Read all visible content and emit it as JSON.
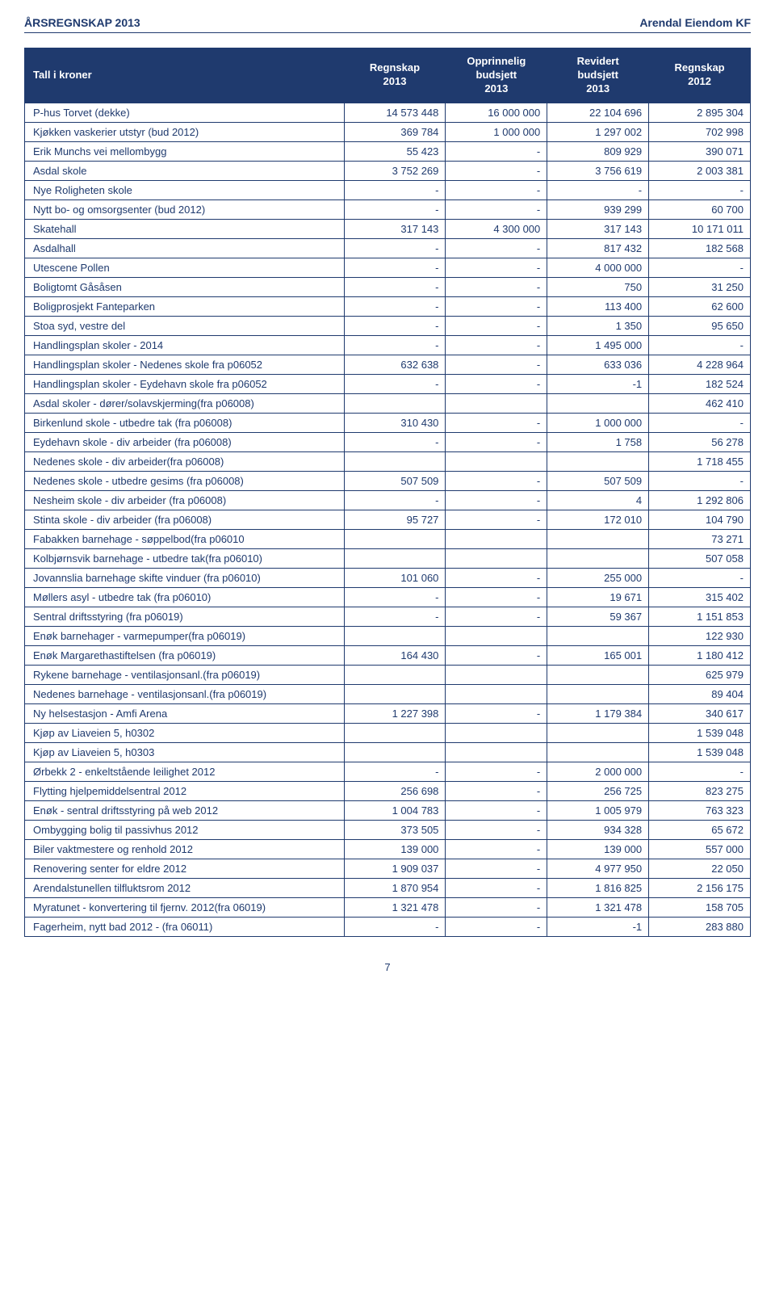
{
  "header": {
    "left": "ÅRSREGNSKAP 2013",
    "right": "Arendal Eiendom KF"
  },
  "page_number": "7",
  "styling": {
    "brand_color": "#1f3a6e",
    "header_bg": "#1f3a6e",
    "header_fg": "#ffffff",
    "body_bg": "#ffffff",
    "font_family": "Arial",
    "font_size_body": 13,
    "font_size_header": 14,
    "col_widths_pct": [
      44,
      14,
      14,
      14,
      14
    ],
    "col_align": [
      "left",
      "right",
      "right",
      "right",
      "right"
    ]
  },
  "table": {
    "type": "table",
    "columns": [
      "Tall i kroner",
      "Regnskap\n2013",
      "Opprinnelig\nbudsjett\n2013",
      "Revidert\nbudsjett\n2013",
      "Regnskap\n2012"
    ],
    "rows": [
      [
        "P-hus Torvet (dekke)",
        "14 573 448",
        "16 000 000",
        "22 104 696",
        "2 895 304"
      ],
      [
        "Kjøkken vaskerier utstyr (bud 2012)",
        "369 784",
        "1 000 000",
        "1 297 002",
        "702 998"
      ],
      [
        "Erik Munchs vei mellombygg",
        "55 423",
        "-",
        "809 929",
        "390 071"
      ],
      [
        "Asdal skole",
        "3 752 269",
        "-",
        "3 756 619",
        "2 003 381"
      ],
      [
        "Nye Roligheten skole",
        "-",
        "-",
        "-",
        "-"
      ],
      [
        "Nytt bo- og omsorgsenter (bud 2012)",
        "-",
        "-",
        "939 299",
        "60 700"
      ],
      [
        "Skatehall",
        "317 143",
        "4 300 000",
        "317 143",
        "10 171 011"
      ],
      [
        "Asdalhall",
        "-",
        "-",
        "817 432",
        "182 568"
      ],
      [
        "Utescene Pollen",
        "-",
        "-",
        "4 000 000",
        "-"
      ],
      [
        "Boligtomt Gåsåsen",
        "-",
        "-",
        "750",
        "31 250"
      ],
      [
        "Boligprosjekt Fanteparken",
        "-",
        "-",
        "113 400",
        "62 600"
      ],
      [
        "Stoa syd, vestre del",
        "-",
        "-",
        "1 350",
        "95 650"
      ],
      [
        "Handlingsplan skoler - 2014",
        "-",
        "-",
        "1 495 000",
        "-"
      ],
      [
        "Handlingsplan skoler - Nedenes skole fra p06052",
        "632 638",
        "-",
        "633 036",
        "4 228 964"
      ],
      [
        "Handlingsplan skoler - Eydehavn skole fra p06052",
        "-",
        "-",
        "-1",
        "182 524"
      ],
      [
        "Asdal skoler - dører/solavskjerming(fra p06008)",
        "",
        "",
        "",
        "462 410"
      ],
      [
        "Birkenlund skole - utbedre tak (fra p06008)",
        "310 430",
        "-",
        "1 000 000",
        "-"
      ],
      [
        "Eydehavn skole - div arbeider (fra p06008)",
        "-",
        "-",
        "1 758",
        "56 278"
      ],
      [
        " Nedenes skole - div arbeider(fra p06008)",
        "",
        "",
        "",
        "1 718 455"
      ],
      [
        "Nedenes skole - utbedre gesims (fra p06008)",
        "507 509",
        "-",
        "507 509",
        "-"
      ],
      [
        "Nesheim skole - div arbeider (fra p06008)",
        "-",
        "-",
        "4",
        "1 292 806"
      ],
      [
        "Stinta skole  - div arbeider (fra p06008)",
        "95 727",
        "-",
        "172 010",
        "104 790"
      ],
      [
        "Fabakken barnehage - søppelbod(fra p06010",
        "",
        "",
        "",
        "73 271"
      ],
      [
        "Kolbjørnsvik barnehage - utbedre tak(fra p06010)",
        "",
        "",
        "",
        "507 058"
      ],
      [
        "Jovannslia barnehage skifte vinduer (fra p06010)",
        "101 060",
        "-",
        "255 000",
        "-"
      ],
      [
        "Møllers asyl - utbedre tak (fra p06010)",
        "-",
        "-",
        "19 671",
        "315 402"
      ],
      [
        "Sentral driftsstyring  (fra p06019)",
        "-",
        "-",
        "59 367",
        "1 151 853"
      ],
      [
        "Enøk barnehager - varmepumper(fra p06019)",
        "",
        "",
        "",
        "122 930"
      ],
      [
        "Enøk Margarethastiftelsen (fra p06019)",
        "164 430",
        "-",
        "165 001",
        "1 180 412"
      ],
      [
        "Rykene barnehage - ventilasjonsanl.(fra p06019)",
        "",
        "",
        "",
        "625 979"
      ],
      [
        "Nedenes barnehage - ventilasjonsanl.(fra p06019)",
        "",
        "",
        "",
        "89 404"
      ],
      [
        "Ny helsestasjon - Amfi Arena",
        "1 227 398",
        "-",
        "1 179 384",
        "340 617"
      ],
      [
        "Kjøp av Liaveien 5, h0302",
        "",
        "",
        "",
        "1 539 048"
      ],
      [
        "Kjøp av Liaveien 5, h0303",
        "",
        "",
        "",
        "1 539 048"
      ],
      [
        "Ørbekk 2 - enkeltstående leilighet 2012",
        "-",
        "-",
        "2 000 000",
        "-"
      ],
      [
        "Flytting hjelpemiddelsentral 2012",
        "256 698",
        "-",
        "256 725",
        "823 275"
      ],
      [
        "Enøk - sentral driftsstyring på web 2012",
        "1 004 783",
        "-",
        "1 005 979",
        "763 323"
      ],
      [
        "Ombygging bolig til passivhus 2012",
        "373 505",
        "-",
        "934 328",
        "65 672"
      ],
      [
        "Biler vaktmestere og renhold 2012",
        "139 000",
        "-",
        "139 000",
        "557 000"
      ],
      [
        "Renovering senter for eldre 2012",
        "1 909 037",
        "-",
        "4 977 950",
        "22 050"
      ],
      [
        "Arendalstunellen tilfluktsrom 2012",
        "1 870 954",
        "-",
        "1 816 825",
        "2 156 175"
      ],
      [
        "Myratunet - konvertering til fjernv. 2012(fra 06019)",
        "1 321 478",
        "-",
        "1 321 478",
        "158 705"
      ],
      [
        "Fagerheim, nytt bad 2012 - (fra 06011)",
        "-",
        "-",
        "-1",
        "283 880"
      ]
    ]
  }
}
